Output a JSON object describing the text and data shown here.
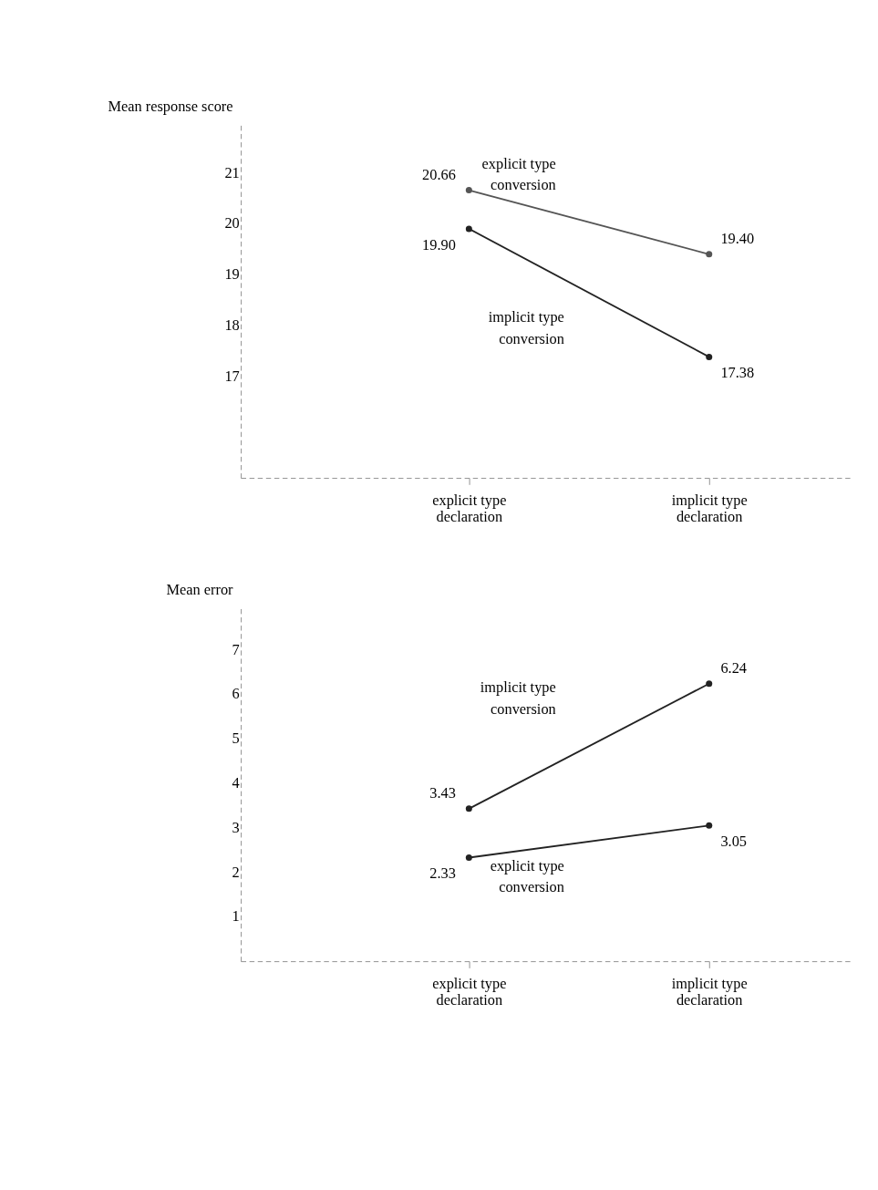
{
  "chart_data": [
    {
      "type": "line",
      "ylabel": "Mean response score",
      "categories": [
        "explicit type declaration",
        "implicit type declaration"
      ],
      "ylim": [
        15,
        22
      ],
      "yticks": [
        17,
        18,
        19,
        20,
        21
      ],
      "grid": false,
      "marker": "circle",
      "line_style": "solid",
      "series": [
        {
          "name": "explicit type conversion",
          "color": "#555555",
          "values": [
            20.66,
            19.4
          ],
          "value_labels": [
            "20.66",
            "19.40"
          ]
        },
        {
          "name": "implicit type conversion",
          "color": "#222222",
          "values": [
            19.9,
            17.38
          ],
          "value_labels": [
            "19.90",
            "17.38"
          ]
        }
      ]
    },
    {
      "type": "line",
      "ylabel": "Mean error",
      "categories": [
        "explicit type declaration",
        "implicit type declaration"
      ],
      "ylim": [
        0,
        8
      ],
      "yticks": [
        1,
        2,
        3,
        4,
        5,
        6,
        7
      ],
      "grid": false,
      "marker": "circle",
      "line_style": "solid",
      "series": [
        {
          "name": "implicit type conversion",
          "color": "#222222",
          "values": [
            3.43,
            6.24
          ],
          "value_labels": [
            "3.43",
            "6.24"
          ]
        },
        {
          "name": "explicit type conversion",
          "color": "#222222",
          "values": [
            2.33,
            3.05
          ],
          "value_labels": [
            "2.33",
            "3.05"
          ]
        }
      ]
    }
  ]
}
